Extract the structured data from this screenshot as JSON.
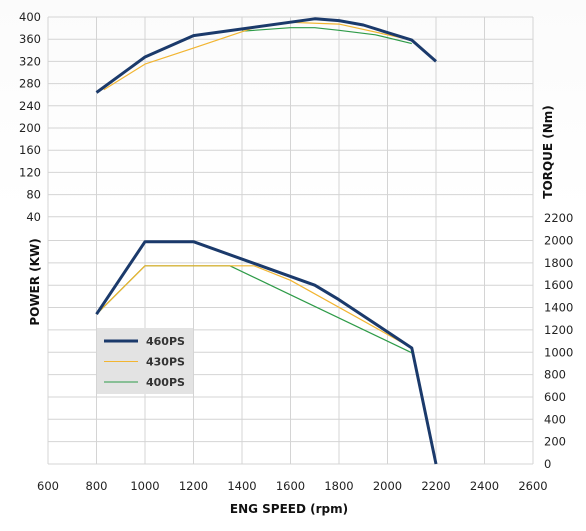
{
  "chart_data": {
    "type": "line",
    "xlabel": "ENG SPEED (rpm)",
    "x_ticks": [
      "600",
      "800",
      "1000",
      "1200",
      "1400",
      "1600",
      "1800",
      "2000",
      "2200",
      "2400",
      "2600"
    ],
    "xlim": [
      600,
      2600
    ],
    "left_ticks": [
      "400",
      "360",
      "320",
      "280",
      "240",
      "200",
      "160",
      "120",
      "80",
      "40"
    ],
    "right_ticks": [
      "2200",
      "2000",
      "1800",
      "1600",
      "1400",
      "1200",
      "1000",
      "800",
      "600",
      "400",
      "200",
      "0"
    ],
    "top_ylabel": "TORQUE (Nm)",
    "bottom_ylabel": "POWER (KW)",
    "colors": {
      "460PS": "#1b3a6b",
      "430PS": "#f2b531",
      "400PS": "#2e9b48",
      "legend_bg": "#e3e3e3"
    },
    "legend": [
      "460PS",
      "430PS",
      "400PS"
    ],
    "torque_series": [
      {
        "name": "460PS",
        "x": [
          800,
          1000,
          1200,
          1700,
          1800,
          1900,
          2100,
          2200
        ],
        "y": [
          1650,
          2050,
          2290,
          2480,
          2460,
          2410,
          2240,
          2000
        ]
      },
      {
        "name": "430PS",
        "x": [
          830,
          1000,
          1200,
          1450,
          1600,
          1800,
          2100
        ],
        "y": [
          1680,
          1970,
          2150,
          2380,
          2440,
          2420,
          2240
        ]
      },
      {
        "name": "400PS",
        "x": [
          1400,
          1600,
          1700,
          1800,
          1950,
          2100
        ],
        "y": [
          2340,
          2380,
          2380,
          2350,
          2300,
          2200
        ]
      }
    ],
    "power_series": [
      {
        "name": "460PS",
        "x": [
          800,
          1000,
          1200,
          1700,
          1800,
          2100,
          2200
        ],
        "y": [
          155,
          230,
          230,
          185,
          170,
          120,
          0
        ]
      },
      {
        "name": "430PS",
        "x": [
          800,
          1000,
          1450,
          1600,
          2100
        ],
        "y": [
          155,
          205,
          205,
          190,
          120
        ]
      },
      {
        "name": "400PS",
        "x": [
          800,
          1000,
          1350,
          1600,
          2100
        ],
        "y": [
          155,
          205,
          205,
          175,
          115
        ]
      }
    ]
  }
}
